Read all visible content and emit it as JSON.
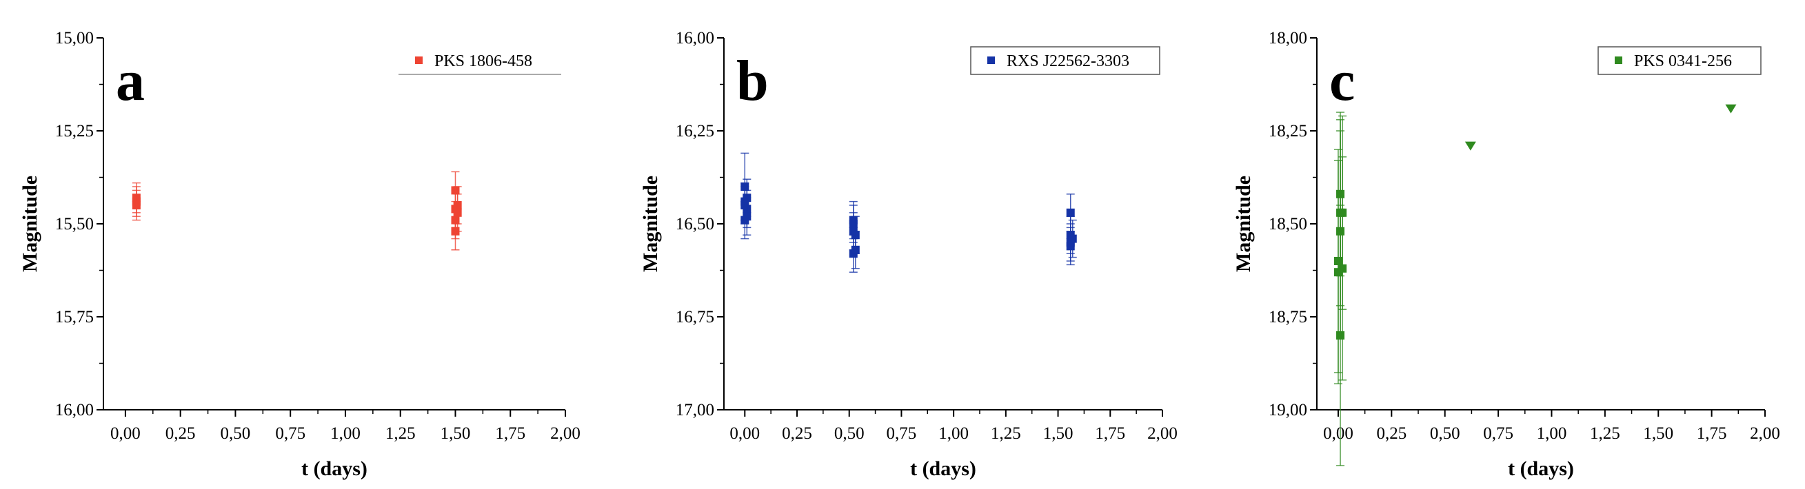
{
  "colors": {
    "a": "#ee4433",
    "b": "#1533a6",
    "c": "#2f8a1f",
    "axis": "#000000",
    "background": "#ffffff"
  },
  "chart_data": [
    {
      "type": "scatter",
      "panel_letter": "a",
      "legend": "PKS 1806-458",
      "legend_marker": "square",
      "xlabel": "t (days)",
      "ylabel": "Magnitude",
      "xlim": [
        -0.1,
        2.0
      ],
      "ylim": [
        15.0,
        16.0
      ],
      "y_inverted": true,
      "xticks": [
        0,
        0.25,
        0.5,
        0.75,
        1.0,
        1.25,
        1.5,
        1.75,
        2.0
      ],
      "yticks": [
        15.0,
        15.25,
        15.5,
        15.75,
        16.0
      ],
      "xtick_labels": [
        "0,00",
        "0,25",
        "0,50",
        "0,75",
        "1,00",
        "1,25",
        "1,50",
        "1,75",
        "2,00"
      ],
      "ytick_labels": [
        "15,00",
        "15,25",
        "15,50",
        "15,75",
        "16,00"
      ],
      "points": [
        {
          "x": 0.05,
          "y": 15.43,
          "err": 0.04
        },
        {
          "x": 0.05,
          "y": 15.44,
          "err": 0.04
        },
        {
          "x": 0.05,
          "y": 15.45,
          "err": 0.04
        },
        {
          "x": 1.5,
          "y": 15.41,
          "err": 0.05
        },
        {
          "x": 1.5,
          "y": 15.46,
          "err": 0.05
        },
        {
          "x": 1.5,
          "y": 15.49,
          "err": 0.05
        },
        {
          "x": 1.5,
          "y": 15.52,
          "err": 0.05
        },
        {
          "x": 1.51,
          "y": 15.45,
          "err": 0.05
        },
        {
          "x": 1.51,
          "y": 15.47,
          "err": 0.05
        }
      ],
      "grid": false
    },
    {
      "type": "scatter",
      "panel_letter": "b",
      "legend": "RXS J22562-3303",
      "legend_marker": "square",
      "xlabel": "t (days)",
      "ylabel": "Magnitude",
      "xlim": [
        -0.1,
        2.0
      ],
      "ylim": [
        16.0,
        17.0
      ],
      "y_inverted": true,
      "xticks": [
        0,
        0.25,
        0.5,
        0.75,
        1.0,
        1.25,
        1.5,
        1.75,
        2.0
      ],
      "yticks": [
        16.0,
        16.25,
        16.5,
        16.75,
        17.0
      ],
      "xtick_labels": [
        "0,00",
        "0,25",
        "0,50",
        "0,75",
        "1,00",
        "1,25",
        "1,50",
        "1,75",
        "2,00"
      ],
      "ytick_labels": [
        "16,00",
        "16,25",
        "16,50",
        "16,75",
        "17,00"
      ],
      "points": [
        {
          "x": 0.0,
          "y": 16.4,
          "err": 0.09
        },
        {
          "x": 0.0,
          "y": 16.44,
          "err": 0.05
        },
        {
          "x": 0.0,
          "y": 16.45,
          "err": 0.05
        },
        {
          "x": 0.01,
          "y": 16.43,
          "err": 0.05
        },
        {
          "x": 0.01,
          "y": 16.46,
          "err": 0.05
        },
        {
          "x": 0.01,
          "y": 16.48,
          "err": 0.05
        },
        {
          "x": 0.0,
          "y": 16.49,
          "err": 0.05
        },
        {
          "x": 0.52,
          "y": 16.49,
          "err": 0.05
        },
        {
          "x": 0.52,
          "y": 16.5,
          "err": 0.05
        },
        {
          "x": 0.52,
          "y": 16.52,
          "err": 0.05
        },
        {
          "x": 0.53,
          "y": 16.53,
          "err": 0.05
        },
        {
          "x": 0.52,
          "y": 16.58,
          "err": 0.05
        },
        {
          "x": 0.53,
          "y": 16.57,
          "err": 0.05
        },
        {
          "x": 1.56,
          "y": 16.47,
          "err": 0.05
        },
        {
          "x": 1.56,
          "y": 16.53,
          "err": 0.05
        },
        {
          "x": 1.56,
          "y": 16.55,
          "err": 0.05
        },
        {
          "x": 1.57,
          "y": 16.54,
          "err": 0.05
        },
        {
          "x": 1.56,
          "y": 16.56,
          "err": 0.05
        }
      ],
      "grid": false
    },
    {
      "type": "scatter",
      "panel_letter": "c",
      "legend": "PKS 0341-256",
      "legend_marker": "square",
      "xlabel": "t (days)",
      "ylabel": "Magnitude",
      "xlim": [
        -0.1,
        2.0
      ],
      "ylim": [
        18.0,
        19.0
      ],
      "y_inverted": true,
      "xticks": [
        0,
        0.25,
        0.5,
        0.75,
        1.0,
        1.25,
        1.5,
        1.75,
        2.0
      ],
      "yticks": [
        18.0,
        18.25,
        18.5,
        18.75,
        19.0
      ],
      "xtick_labels": [
        "0,00",
        "0,25",
        "0,50",
        "0,75",
        "1,00",
        "1,25",
        "1,50",
        "1,75",
        "2,00"
      ],
      "ytick_labels": [
        "18,00",
        "18,25",
        "18,50",
        "18,75",
        "19,00"
      ],
      "points": [
        {
          "x": 0.01,
          "y": 18.42,
          "err": 0.22
        },
        {
          "x": 0.01,
          "y": 18.47,
          "err": 0.25
        },
        {
          "x": 0.02,
          "y": 18.47,
          "err": 0.26
        },
        {
          "x": 0.01,
          "y": 18.52,
          "err": 0.27
        },
        {
          "x": 0.0,
          "y": 18.6,
          "err": 0.3
        },
        {
          "x": 0.0,
          "y": 18.63,
          "err": 0.3
        },
        {
          "x": 0.02,
          "y": 18.62,
          "err": 0.3
        },
        {
          "x": 0.01,
          "y": 18.8,
          "err": 0.35
        }
      ],
      "limits": [
        {
          "x": 0.62,
          "y": 18.29
        },
        {
          "x": 1.84,
          "y": 18.19
        }
      ],
      "grid": false
    }
  ]
}
